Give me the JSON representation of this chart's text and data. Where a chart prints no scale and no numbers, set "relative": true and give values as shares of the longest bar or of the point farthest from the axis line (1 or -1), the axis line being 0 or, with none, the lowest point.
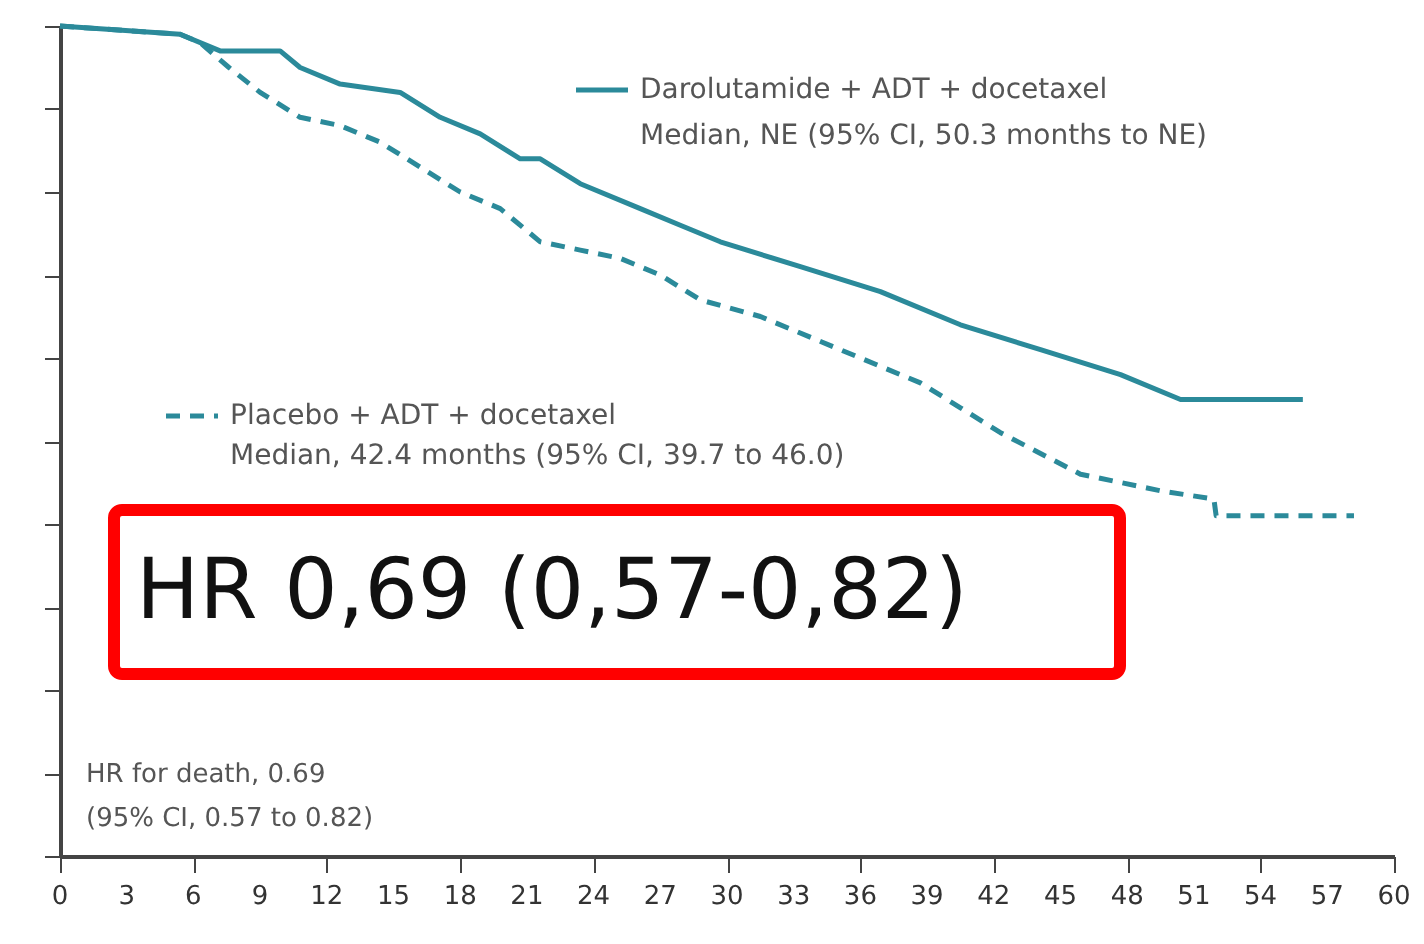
{
  "chart_data": {
    "type": "line",
    "relative": true,
    "xlim": [
      0,
      60
    ],
    "xticks": [
      0,
      3,
      6,
      9,
      12,
      15,
      18,
      21,
      24,
      27,
      30,
      33,
      36,
      39,
      42,
      45,
      48,
      51,
      54,
      57,
      60
    ],
    "grid": false,
    "marker": "none",
    "legend": "top",
    "series": [
      {
        "name": "Darolutamide + ADT + docetaxel",
        "color": "#2b8a9a",
        "line_style": "solid",
        "x": [
          0,
          5.4,
          7.2,
          9.9,
          10.8,
          12.6,
          15.3,
          17.1,
          18.9,
          20.7,
          21.6,
          23.4,
          26.1,
          27.9,
          29.7,
          33.3,
          36.9,
          40.5,
          44.1,
          47.7,
          50.4,
          55.9
        ],
        "values": [
          1.0,
          0.99,
          0.97,
          0.97,
          0.95,
          0.93,
          0.92,
          0.89,
          0.87,
          0.84,
          0.84,
          0.81,
          0.78,
          0.76,
          0.74,
          0.71,
          0.68,
          0.64,
          0.61,
          0.58,
          0.55,
          0.55
        ]
      },
      {
        "name": "Placebo + ADT + docetaxel",
        "color": "#2b8a9a",
        "line_style": "dashed",
        "x": [
          0,
          5.4,
          6.3,
          7.6,
          9.0,
          10.8,
          12.6,
          14.4,
          16.2,
          18.0,
          19.8,
          21.6,
          23.4,
          25.2,
          27.0,
          28.8,
          31.5,
          35.1,
          38.7,
          40.5,
          42.3,
          45.9,
          49.5,
          51.9,
          52.0,
          58.2
        ],
        "values": [
          1.0,
          0.99,
          0.98,
          0.95,
          0.92,
          0.89,
          0.88,
          0.86,
          0.83,
          0.8,
          0.78,
          0.74,
          0.73,
          0.72,
          0.7,
          0.67,
          0.65,
          0.61,
          0.57,
          0.54,
          0.51,
          0.46,
          0.44,
          0.43,
          0.41,
          0.41
        ]
      }
    ],
    "annotations": [
      "Median, NE (95% CI, 50.3 months to NE)",
      "Median, 42.4 months (95% CI, 39.7 to 46.0)",
      "HR 0,69 (0,57-0,82)",
      "HR for death, 0.69",
      "(95% CI, 0.57 to 0.82)"
    ]
  }
}
